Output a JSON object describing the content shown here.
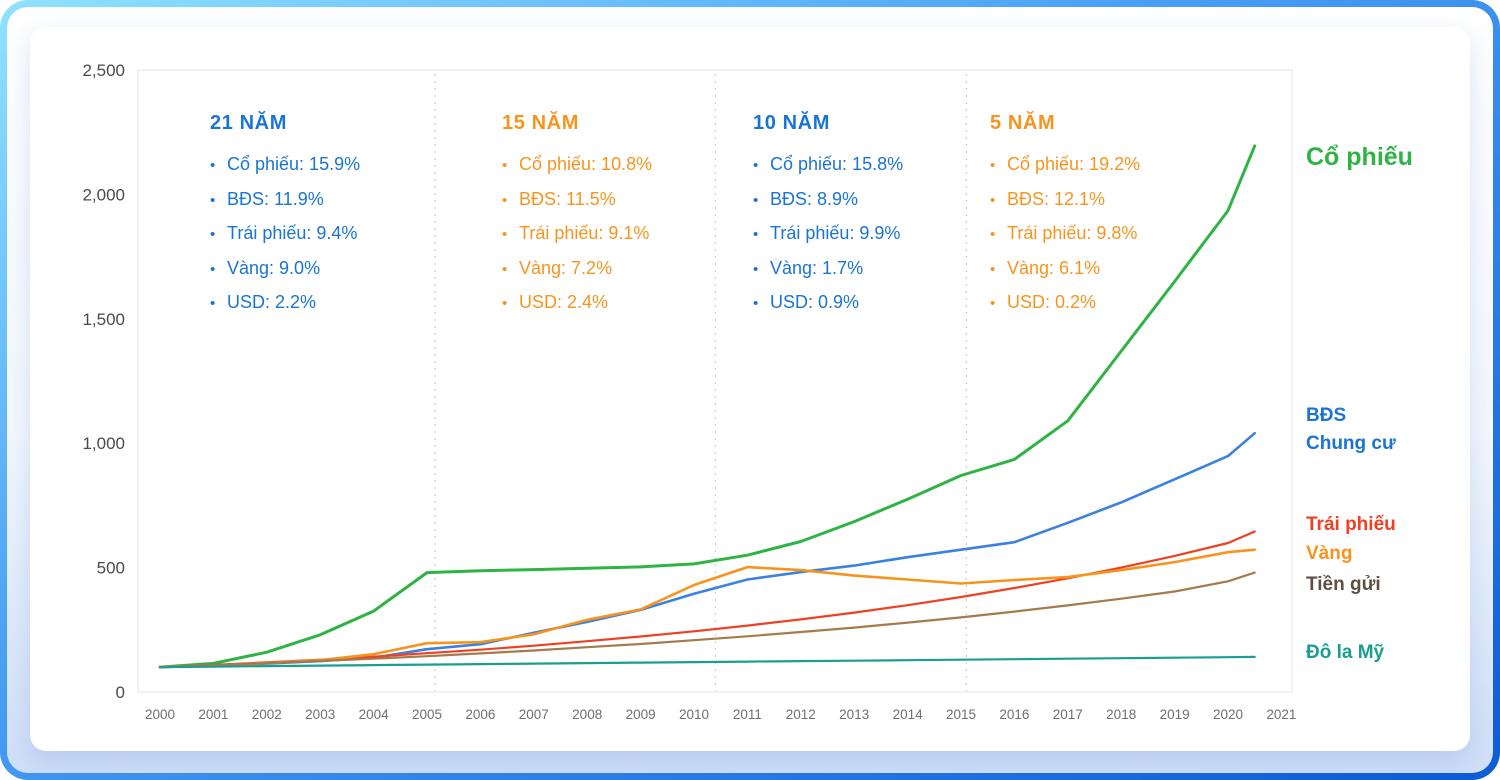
{
  "chart_data": {
    "type": "line",
    "title": "",
    "xlabel": "",
    "ylabel": "",
    "ylim": [
      0,
      2500
    ],
    "grid": false,
    "legend_position": "right",
    "x_tick_years": [
      "2000",
      "2001",
      "2002",
      "2003",
      "2004",
      "2005",
      "2006",
      "2007",
      "2008",
      "2009",
      "2010",
      "2011",
      "2012",
      "2013",
      "2014",
      "2015",
      "2016",
      "2017",
      "2018",
      "2019",
      "2020",
      "2021"
    ],
    "y_ticks": [
      {
        "value": 0,
        "label": "0"
      },
      {
        "value": 500,
        "label": "500"
      },
      {
        "value": 1000,
        "label": "1,000"
      },
      {
        "value": 1500,
        "label": "1,500"
      },
      {
        "value": 2000,
        "label": "2,000"
      },
      {
        "value": 2500,
        "label": "2,500"
      }
    ],
    "dashed_vertical_lines_at": [
      2005.15,
      2010.4,
      2015.1
    ],
    "x": [
      2000,
      2001,
      2002,
      2003,
      2004,
      2005,
      2006,
      2007,
      2008,
      2009,
      2010,
      2011,
      2012,
      2013,
      2014,
      2015,
      2016,
      2017,
      2018,
      2019,
      2020,
      2020.5
    ],
    "series": [
      {
        "id": "co-phieu",
        "name": "Cổ phiếu",
        "color": "#2fb344",
        "stroke_width": 3,
        "values": [
          100,
          115,
          160,
          230,
          325,
          480,
          487,
          492,
          497,
          503,
          515,
          550,
          605,
          685,
          775,
          870,
          935,
          1090,
          1370,
          1650,
          1935,
          2195
        ]
      },
      {
        "id": "bds-chung-cu",
        "name": "BĐS Chung cư",
        "color": "#3b82e0",
        "stroke_width": 2.6,
        "values": [
          100,
          106,
          114,
          124,
          138,
          172,
          192,
          238,
          282,
          330,
          395,
          452,
          482,
          508,
          542,
          572,
          602,
          680,
          762,
          855,
          948,
          1040
        ]
      },
      {
        "id": "trai-phieu",
        "name": "Trái phiếu",
        "color": "#ee4023",
        "stroke_width": 2.2,
        "values": [
          100,
          109,
          119,
          130,
          142,
          156,
          170,
          186,
          204,
          223,
          244,
          267,
          292,
          319,
          349,
          382,
          418,
          457,
          500,
          547,
          599,
          645
        ]
      },
      {
        "id": "vang",
        "name": "Vàng",
        "color": "#f7941e",
        "stroke_width": 2.6,
        "values": [
          100,
          106,
          116,
          128,
          152,
          196,
          200,
          232,
          290,
          332,
          430,
          502,
          490,
          468,
          452,
          436,
          450,
          462,
          490,
          522,
          562,
          572
        ]
      },
      {
        "id": "tien-gui",
        "name": "Tiền gửi",
        "color": "#a47a4e",
        "stroke_width": 2.2,
        "values": [
          100,
          108,
          116,
          125,
          134,
          144,
          155,
          167,
          180,
          193,
          208,
          224,
          241,
          259,
          279,
          300,
          323,
          348,
          375,
          404,
          445,
          480
        ]
      },
      {
        "id": "do-la-my",
        "name": "Đô la Mỹ",
        "color": "#1a9e90",
        "stroke_width": 2.2,
        "values": [
          100,
          102,
          104,
          106,
          108,
          110,
          112,
          114,
          116,
          118,
          120,
          122,
          124,
          126,
          128,
          130,
          132,
          134,
          136,
          138,
          140,
          141
        ]
      }
    ],
    "periods": [
      {
        "title": "21 NĂM",
        "color": "#1a74d4",
        "items": [
          "Cổ phiếu: 15.9%",
          "BĐS: 11.9%",
          "Trái phiếu: 9.4%",
          "Vàng: 9.0%",
          "USD: 2.2%"
        ]
      },
      {
        "title": "15 NĂM",
        "color": "#f7941e",
        "items": [
          "Cổ phiếu: 10.8%",
          "BĐS: 11.5%",
          "Trái phiếu: 9.1%",
          "Vàng: 7.2%",
          "USD: 2.4%"
        ]
      },
      {
        "title": "10 NĂM",
        "color": "#1a74d4",
        "items": [
          "Cổ phiếu: 15.8%",
          "BĐS: 8.9%",
          "Trái phiếu: 9.9%",
          "Vàng: 1.7%",
          "USD: 0.9%"
        ]
      },
      {
        "title": "5 NĂM",
        "color": "#f7941e",
        "items": [
          "Cổ phiếu: 19.2%",
          "BĐS: 12.1%",
          "Trái phiếu: 9.8%",
          "Vàng: 6.1%",
          "USD: 0.2%"
        ]
      }
    ],
    "right_labels": [
      {
        "id": "co-phieu",
        "lines": [
          "Cổ phiếu"
        ],
        "color": "#2fb344"
      },
      {
        "id": "bds-chung-cu",
        "lines": [
          "BĐS",
          "Chung cư"
        ],
        "color": "#1a74d4"
      },
      {
        "id": "trai-phieu",
        "lines": [
          "Trái phiếu"
        ],
        "color": "#ee4023"
      },
      {
        "id": "vang",
        "lines": [
          "Vàng"
        ],
        "color": "#f7941e"
      },
      {
        "id": "tien-gui",
        "lines": [
          "Tiền gửi"
        ],
        "color": "#5d4f42"
      },
      {
        "id": "do-la-my",
        "lines": [
          "Đô la Mỹ"
        ],
        "color": "#1a9e90"
      }
    ]
  }
}
